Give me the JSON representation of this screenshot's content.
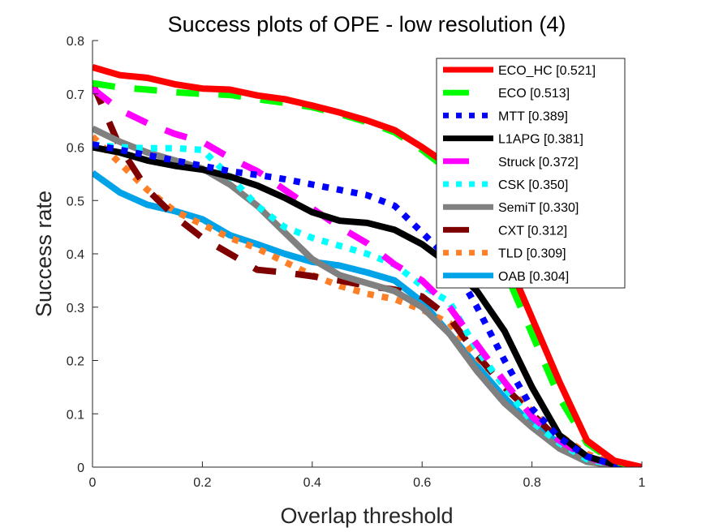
{
  "chart_data": {
    "type": "line",
    "title": "Success plots of OPE - low resolution (4)",
    "xlabel": "Overlap threshold",
    "ylabel": "Success rate",
    "xlim": [
      0,
      1
    ],
    "ylim": [
      0,
      0.8
    ],
    "xticks": [
      0,
      0.2,
      0.4,
      0.6,
      0.8,
      1
    ],
    "xtick_labels": [
      "0",
      "0.2",
      "0.4",
      "0.6",
      "0.8",
      "1"
    ],
    "yticks": [
      0,
      0.1,
      0.2,
      0.3,
      0.4,
      0.5,
      0.6,
      0.7,
      0.8
    ],
    "ytick_labels": [
      "0",
      "0.1",
      "0.2",
      "0.3",
      "0.4",
      "0.5",
      "0.6",
      "0.7",
      "0.8"
    ],
    "grid": false,
    "legend_position": "top-right",
    "x": [
      0,
      0.05,
      0.1,
      0.15,
      0.2,
      0.25,
      0.3,
      0.35,
      0.4,
      0.45,
      0.5,
      0.55,
      0.6,
      0.65,
      0.7,
      0.75,
      0.8,
      0.85,
      0.9,
      0.95,
      1
    ],
    "series": [
      {
        "name": "ECO_HC [0.521]",
        "color": "#ff0000",
        "style": "solid",
        "values": [
          0.75,
          0.735,
          0.73,
          0.718,
          0.71,
          0.708,
          0.697,
          0.69,
          0.678,
          0.665,
          0.65,
          0.632,
          0.6,
          0.565,
          0.5,
          0.4,
          0.28,
          0.16,
          0.05,
          0.012,
          0.0
        ]
      },
      {
        "name": "ECO [0.513]",
        "color": "#00ff00",
        "style": "dashed",
        "values": [
          0.72,
          0.712,
          0.708,
          0.703,
          0.7,
          0.698,
          0.69,
          0.683,
          0.675,
          0.662,
          0.647,
          0.628,
          0.595,
          0.555,
          0.48,
          0.37,
          0.25,
          0.13,
          0.045,
          0.01,
          0.0
        ]
      },
      {
        "name": "MTT [0.389]",
        "color": "#0000ff",
        "style": "dotted",
        "values": [
          0.605,
          0.595,
          0.585,
          0.575,
          0.565,
          0.555,
          0.548,
          0.54,
          0.53,
          0.52,
          0.51,
          0.49,
          0.44,
          0.39,
          0.3,
          0.2,
          0.11,
          0.055,
          0.02,
          0.005,
          0.0
        ]
      },
      {
        "name": "L1APG [0.381]",
        "color": "#000000",
        "style": "solid",
        "values": [
          0.6,
          0.59,
          0.575,
          0.565,
          0.558,
          0.545,
          0.528,
          0.505,
          0.478,
          0.462,
          0.458,
          0.445,
          0.418,
          0.38,
          0.33,
          0.255,
          0.15,
          0.06,
          0.02,
          0.005,
          0.0
        ]
      },
      {
        "name": "Struck [0.372]",
        "color": "#ff00ff",
        "style": "dashed",
        "values": [
          0.71,
          0.67,
          0.645,
          0.625,
          0.61,
          0.58,
          0.555,
          0.52,
          0.485,
          0.45,
          0.42,
          0.38,
          0.35,
          0.3,
          0.23,
          0.16,
          0.095,
          0.05,
          0.018,
          0.005,
          0.0
        ]
      },
      {
        "name": "CSK [0.350]",
        "color": "#00ffff",
        "style": "dotted",
        "values": [
          0.605,
          0.6,
          0.598,
          0.598,
          0.595,
          0.545,
          0.49,
          0.45,
          0.43,
          0.415,
          0.4,
          0.38,
          0.34,
          0.31,
          0.22,
          0.15,
          0.085,
          0.045,
          0.015,
          0.004,
          0.0
        ]
      },
      {
        "name": "SemiT [0.330]",
        "color": "#808080",
        "style": "solid",
        "values": [
          0.635,
          0.61,
          0.59,
          0.575,
          0.56,
          0.53,
          0.49,
          0.44,
          0.39,
          0.36,
          0.345,
          0.33,
          0.3,
          0.25,
          0.18,
          0.12,
          0.075,
          0.035,
          0.01,
          0.003,
          0.0
        ]
      },
      {
        "name": "CXT [0.312]",
        "color": "#7f0000",
        "style": "dashed",
        "values": [
          0.72,
          0.6,
          0.52,
          0.47,
          0.43,
          0.4,
          0.37,
          0.365,
          0.358,
          0.35,
          0.34,
          0.333,
          0.32,
          0.28,
          0.21,
          0.15,
          0.1,
          0.05,
          0.015,
          0.004,
          0.0
        ]
      },
      {
        "name": "TLD [0.309]",
        "color": "#ff7f27",
        "style": "dotted",
        "values": [
          0.62,
          0.57,
          0.52,
          0.48,
          0.455,
          0.43,
          0.41,
          0.385,
          0.36,
          0.34,
          0.325,
          0.315,
          0.295,
          0.27,
          0.205,
          0.155,
          0.105,
          0.06,
          0.025,
          0.006,
          0.0
        ]
      },
      {
        "name": "OAB [0.304]",
        "color": "#00a2e8",
        "style": "solid",
        "values": [
          0.552,
          0.515,
          0.492,
          0.48,
          0.465,
          0.435,
          0.418,
          0.4,
          0.385,
          0.378,
          0.365,
          0.35,
          0.31,
          0.25,
          0.19,
          0.13,
          0.08,
          0.045,
          0.015,
          0.008,
          0.0
        ]
      }
    ]
  }
}
